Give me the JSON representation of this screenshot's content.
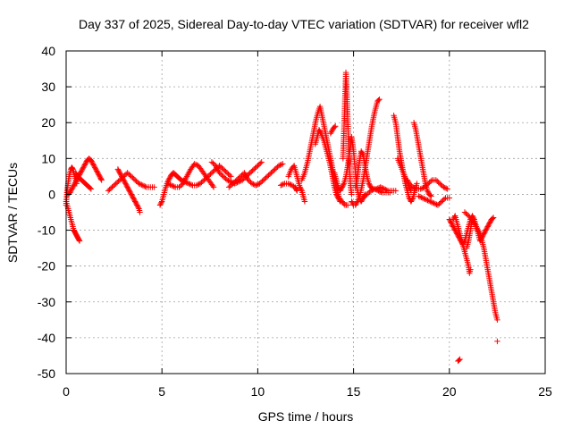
{
  "chart_data": {
    "type": "scatter",
    "title": "Day 337 of 2025, Sidereal Day-to-day VTEC variation (SDTVAR) for receiver wfl2",
    "xlabel": "GPS time / hours",
    "ylabel": "SDTVAR / TECUs",
    "xlim": [
      0,
      25
    ],
    "ylim": [
      -50,
      40
    ],
    "xticks": [
      0,
      5,
      10,
      15,
      20,
      25
    ],
    "yticks": [
      -50,
      -40,
      -30,
      -20,
      -10,
      0,
      10,
      20,
      30,
      40
    ],
    "x_tick_labels": [
      "0",
      "5",
      "10",
      "15",
      "20",
      "25"
    ],
    "y_tick_labels": [
      "-50",
      "-40",
      "-30",
      "-20",
      "-10",
      "0",
      "10",
      "20",
      "30",
      "40"
    ],
    "grid": true,
    "marker": "+",
    "marker_color": "#ff0000",
    "segments": [
      [
        [
          0.0,
          -3
        ],
        [
          0.05,
          1
        ],
        [
          0.1,
          3
        ],
        [
          0.15,
          5
        ],
        [
          0.2,
          6
        ],
        [
          0.25,
          7
        ],
        [
          0.3,
          7.5
        ],
        [
          0.35,
          7
        ],
        [
          0.4,
          6
        ],
        [
          0.45,
          5
        ],
        [
          0.5,
          4
        ],
        [
          0.55,
          3
        ]
      ],
      [
        [
          0.0,
          -2
        ],
        [
          0.05,
          -3
        ],
        [
          0.1,
          -4
        ],
        [
          0.15,
          -5
        ],
        [
          0.2,
          -6
        ],
        [
          0.25,
          -7
        ],
        [
          0.3,
          -8
        ],
        [
          0.35,
          -9
        ],
        [
          0.4,
          -10
        ],
        [
          0.45,
          -10.5
        ],
        [
          0.5,
          -11
        ],
        [
          0.55,
          -11.5
        ],
        [
          0.6,
          -12
        ],
        [
          0.65,
          -12.5
        ],
        [
          0.7,
          -13
        ]
      ],
      [
        [
          0.1,
          0
        ],
        [
          0.2,
          0.5
        ],
        [
          0.3,
          1.5
        ],
        [
          0.4,
          2.5
        ],
        [
          0.5,
          3.5
        ],
        [
          0.6,
          4.5
        ],
        [
          0.7,
          5.5
        ],
        [
          0.8,
          6.5
        ],
        [
          0.9,
          7.5
        ],
        [
          1.0,
          8.5
        ],
        [
          1.1,
          9.5
        ],
        [
          1.2,
          10
        ],
        [
          1.3,
          9.5
        ],
        [
          1.4,
          8.5
        ],
        [
          1.5,
          7.5
        ],
        [
          1.6,
          6.5
        ],
        [
          1.7,
          5.5
        ],
        [
          1.8,
          4.5
        ],
        [
          1.85,
          4
        ]
      ],
      [
        [
          0.5,
          6
        ],
        [
          0.6,
          5
        ],
        [
          0.7,
          4.5
        ],
        [
          0.8,
          4
        ],
        [
          0.9,
          3.5
        ],
        [
          1.0,
          3
        ],
        [
          1.1,
          2.5
        ],
        [
          1.2,
          2
        ],
        [
          1.3,
          1.5
        ]
      ],
      [
        [
          2.2,
          1
        ],
        [
          2.4,
          2
        ],
        [
          2.6,
          3
        ],
        [
          2.8,
          4
        ],
        [
          3.0,
          5
        ],
        [
          3.2,
          6
        ],
        [
          3.4,
          5
        ],
        [
          3.6,
          4
        ],
        [
          3.8,
          3
        ],
        [
          4.0,
          2.5
        ],
        [
          4.2,
          2
        ],
        [
          4.4,
          2
        ],
        [
          4.6,
          2
        ]
      ],
      [
        [
          2.7,
          7
        ],
        [
          2.8,
          6
        ],
        [
          2.9,
          5
        ],
        [
          3.0,
          4
        ],
        [
          3.1,
          3
        ],
        [
          3.2,
          2
        ],
        [
          3.3,
          1
        ],
        [
          3.4,
          0
        ],
        [
          3.5,
          -1
        ],
        [
          3.6,
          -2
        ],
        [
          3.7,
          -3
        ],
        [
          3.8,
          -4
        ],
        [
          3.85,
          -5
        ]
      ],
      [
        [
          4.9,
          -3
        ],
        [
          5.0,
          -2
        ],
        [
          5.1,
          0
        ],
        [
          5.2,
          2
        ],
        [
          5.3,
          3.5
        ],
        [
          5.4,
          4.5
        ],
        [
          5.5,
          5.5
        ],
        [
          5.6,
          6
        ],
        [
          5.7,
          5.5
        ],
        [
          5.8,
          5
        ],
        [
          5.9,
          4.5
        ],
        [
          6.0,
          4
        ],
        [
          6.2,
          3.5
        ],
        [
          6.4,
          3
        ],
        [
          6.6,
          2.5
        ],
        [
          6.8,
          2.5
        ],
        [
          7.0,
          3
        ],
        [
          7.2,
          4
        ],
        [
          7.4,
          5
        ],
        [
          7.6,
          6
        ],
        [
          7.8,
          7
        ],
        [
          8.0,
          8
        ],
        [
          8.2,
          7
        ],
        [
          8.4,
          6
        ],
        [
          8.6,
          5
        ]
      ],
      [
        [
          5.3,
          3
        ],
        [
          5.5,
          2.5
        ],
        [
          5.7,
          2
        ],
        [
          5.9,
          2
        ],
        [
          6.1,
          3
        ],
        [
          6.3,
          5
        ],
        [
          6.5,
          7
        ],
        [
          6.7,
          8.5
        ],
        [
          6.9,
          8
        ],
        [
          7.1,
          6.5
        ],
        [
          7.3,
          5
        ],
        [
          7.5,
          3.5
        ],
        [
          7.7,
          2
        ]
      ],
      [
        [
          7.6,
          9
        ],
        [
          7.8,
          8
        ],
        [
          8.0,
          6
        ],
        [
          8.2,
          5
        ],
        [
          8.4,
          4
        ],
        [
          8.6,
          3.5
        ],
        [
          8.8,
          3
        ],
        [
          9.0,
          3.5
        ],
        [
          9.2,
          4
        ],
        [
          9.4,
          5
        ],
        [
          9.6,
          6
        ],
        [
          9.8,
          7
        ],
        [
          10.0,
          8
        ],
        [
          10.2,
          9
        ]
      ],
      [
        [
          8.5,
          2
        ],
        [
          8.7,
          3
        ],
        [
          8.9,
          4
        ],
        [
          9.1,
          5
        ],
        [
          9.3,
          6
        ],
        [
          9.5,
          4
        ],
        [
          9.7,
          3
        ],
        [
          9.9,
          2.5
        ],
        [
          10.1,
          3
        ],
        [
          10.3,
          4
        ],
        [
          10.5,
          5
        ],
        [
          10.7,
          6
        ],
        [
          10.9,
          7
        ],
        [
          11.1,
          8
        ],
        [
          11.3,
          8.5
        ]
      ],
      [
        [
          11.2,
          2.5
        ],
        [
          11.4,
          3
        ],
        [
          11.6,
          3
        ],
        [
          11.8,
          2.5
        ],
        [
          11.95,
          2
        ],
        [
          12.0,
          1.5
        ],
        [
          12.05,
          1
        ]
      ],
      [
        [
          11.6,
          5
        ],
        [
          11.75,
          7
        ],
        [
          11.9,
          8
        ],
        [
          12.0,
          6
        ],
        [
          12.1,
          4
        ],
        [
          12.2,
          2
        ],
        [
          12.3,
          1
        ],
        [
          12.35,
          0
        ],
        [
          12.4,
          -1
        ],
        [
          12.45,
          -2
        ]
      ],
      [
        [
          12.3,
          4
        ],
        [
          12.45,
          6
        ],
        [
          12.6,
          9
        ],
        [
          12.75,
          13
        ],
        [
          12.9,
          17
        ],
        [
          13.05,
          21
        ],
        [
          13.15,
          23
        ],
        [
          13.25,
          24.5
        ],
        [
          13.35,
          22
        ],
        [
          13.5,
          18
        ],
        [
          13.65,
          14
        ],
        [
          13.8,
          10
        ],
        [
          13.95,
          6
        ],
        [
          14.1,
          2
        ],
        [
          14.25,
          -1
        ],
        [
          14.4,
          -2
        ],
        [
          14.55,
          -3
        ],
        [
          14.7,
          -3
        ]
      ],
      [
        [
          13.0,
          14
        ],
        [
          13.1,
          16
        ],
        [
          13.2,
          18
        ],
        [
          13.3,
          17
        ],
        [
          13.45,
          15
        ],
        [
          13.6,
          12
        ],
        [
          13.75,
          9
        ],
        [
          13.9,
          5
        ],
        [
          14.0,
          2
        ],
        [
          14.1,
          0
        ],
        [
          14.2,
          -1
        ],
        [
          14.3,
          -2
        ]
      ],
      [
        [
          13.8,
          17
        ],
        [
          13.95,
          18.5
        ],
        [
          14.05,
          19
        ]
      ],
      [
        [
          14.0,
          6
        ],
        [
          14.1,
          4
        ],
        [
          14.2,
          2
        ],
        [
          14.3,
          1
        ],
        [
          14.4,
          2
        ],
        [
          14.5,
          3
        ],
        [
          14.6,
          5
        ],
        [
          14.7,
          8
        ],
        [
          14.8,
          12
        ],
        [
          14.9,
          16
        ],
        [
          15.0,
          12
        ],
        [
          15.1,
          6
        ],
        [
          15.2,
          1
        ],
        [
          15.3,
          -1
        ],
        [
          15.4,
          -2
        ],
        [
          15.5,
          -1
        ],
        [
          15.6,
          0
        ]
      ],
      [
        [
          14.45,
          10
        ],
        [
          14.5,
          18
        ],
        [
          14.55,
          26
        ],
        [
          14.6,
          34
        ],
        [
          14.65,
          28
        ],
        [
          14.7,
          20
        ],
        [
          14.75,
          12
        ],
        [
          14.8,
          6
        ],
        [
          14.85,
          2
        ],
        [
          14.9,
          0
        ]
      ],
      [
        [
          14.9,
          -2
        ],
        [
          15.0,
          -3
        ],
        [
          15.1,
          -3
        ],
        [
          15.2,
          -2
        ],
        [
          15.35,
          0
        ],
        [
          15.5,
          4
        ],
        [
          15.65,
          9
        ],
        [
          15.8,
          14
        ],
        [
          15.95,
          19
        ],
        [
          16.1,
          23
        ],
        [
          16.25,
          26
        ],
        [
          16.35,
          26.5
        ]
      ],
      [
        [
          15.1,
          2
        ],
        [
          15.2,
          5
        ],
        [
          15.3,
          9
        ],
        [
          15.4,
          12
        ],
        [
          15.5,
          11
        ],
        [
          15.6,
          8
        ],
        [
          15.7,
          5
        ],
        [
          15.8,
          3
        ],
        [
          15.9,
          2
        ],
        [
          16.0,
          1.5
        ],
        [
          16.2,
          1.5
        ],
        [
          16.4,
          2
        ],
        [
          16.6,
          1.5
        ],
        [
          16.8,
          1
        ],
        [
          17.0,
          1
        ],
        [
          17.2,
          1
        ]
      ],
      [
        [
          15.5,
          -1
        ],
        [
          15.7,
          0
        ],
        [
          15.9,
          1
        ],
        [
          16.1,
          1.5
        ],
        [
          16.3,
          1
        ],
        [
          16.5,
          0.5
        ],
        [
          16.7,
          0.5
        ],
        [
          16.9,
          0.5
        ]
      ],
      [
        [
          17.1,
          22
        ],
        [
          17.2,
          20
        ],
        [
          17.3,
          16
        ],
        [
          17.4,
          12
        ],
        [
          17.5,
          9
        ],
        [
          17.6,
          6
        ],
        [
          17.7,
          3
        ],
        [
          17.8,
          1
        ],
        [
          17.9,
          -1
        ],
        [
          18.0,
          -2
        ],
        [
          18.1,
          -1
        ],
        [
          18.2,
          1
        ],
        [
          18.3,
          3
        ]
      ],
      [
        [
          17.3,
          10
        ],
        [
          17.45,
          8
        ],
        [
          17.6,
          6
        ],
        [
          17.75,
          4
        ],
        [
          17.9,
          2
        ],
        [
          18.0,
          1
        ]
      ],
      [
        [
          17.8,
          4
        ],
        [
          17.9,
          3
        ],
        [
          18.1,
          2
        ],
        [
          18.3,
          1.5
        ],
        [
          18.5,
          1.5
        ],
        [
          18.7,
          2
        ],
        [
          18.9,
          3
        ],
        [
          19.1,
          4
        ],
        [
          19.3,
          4
        ],
        [
          19.5,
          3
        ],
        [
          19.7,
          2
        ],
        [
          19.9,
          1.5
        ]
      ],
      [
        [
          18.15,
          20
        ],
        [
          18.25,
          18
        ],
        [
          18.35,
          15
        ],
        [
          18.45,
          12
        ],
        [
          18.55,
          9
        ],
        [
          18.65,
          6
        ],
        [
          18.75,
          3
        ],
        [
          18.85,
          1
        ],
        [
          18.95,
          0
        ],
        [
          19.05,
          -0.5
        ]
      ],
      [
        [
          18.4,
          -0.5
        ],
        [
          18.6,
          -1
        ],
        [
          18.8,
          -1.5
        ],
        [
          19.0,
          -2
        ],
        [
          19.2,
          -2.5
        ],
        [
          19.4,
          -3
        ],
        [
          19.6,
          -2
        ],
        [
          19.8,
          -1
        ],
        [
          20.0,
          -1
        ]
      ],
      [
        [
          20.0,
          -7
        ],
        [
          20.1,
          -8
        ],
        [
          20.2,
          -9
        ],
        [
          20.3,
          -10
        ],
        [
          20.4,
          -11
        ],
        [
          20.5,
          -12
        ],
        [
          20.6,
          -13
        ],
        [
          20.7,
          -14
        ],
        [
          20.75,
          -15
        ],
        [
          20.8,
          -16
        ],
        [
          20.9,
          -18
        ],
        [
          21.0,
          -20
        ],
        [
          21.05,
          -22
        ],
        [
          21.1,
          -21
        ]
      ],
      [
        [
          20.2,
          -7
        ],
        [
          20.3,
          -6
        ],
        [
          20.4,
          -8
        ],
        [
          20.5,
          -10
        ],
        [
          20.6,
          -12
        ],
        [
          20.7,
          -14
        ],
        [
          20.8,
          -13
        ],
        [
          20.9,
          -11
        ],
        [
          21.0,
          -9
        ],
        [
          21.1,
          -7
        ],
        [
          21.2,
          -6
        ],
        [
          21.3,
          -7
        ],
        [
          21.4,
          -9
        ],
        [
          21.5,
          -11
        ],
        [
          21.6,
          -13
        ],
        [
          21.7,
          -12
        ],
        [
          21.8,
          -11
        ],
        [
          21.9,
          -10
        ],
        [
          22.0,
          -9
        ],
        [
          22.1,
          -8
        ],
        [
          22.2,
          -7
        ],
        [
          22.3,
          -6.5
        ]
      ],
      [
        [
          20.8,
          -5
        ],
        [
          21.0,
          -6
        ],
        [
          21.2,
          -7
        ],
        [
          21.4,
          -9
        ],
        [
          21.6,
          -11
        ],
        [
          21.7,
          -13
        ],
        [
          21.8,
          -15
        ],
        [
          21.9,
          -18
        ],
        [
          22.0,
          -21
        ],
        [
          22.1,
          -24
        ],
        [
          22.2,
          -27
        ],
        [
          22.3,
          -30
        ],
        [
          22.4,
          -33
        ],
        [
          22.5,
          -35
        ]
      ],
      [
        [
          20.9,
          -15
        ],
        [
          21.0,
          -13
        ],
        [
          21.1,
          -10
        ],
        [
          21.15,
          -8
        ],
        [
          21.2,
          -7
        ]
      ],
      [
        [
          20.55,
          -46
        ],
        [
          20.45,
          -46.5
        ]
      ],
      [
        [
          22.5,
          -41
        ]
      ]
    ]
  }
}
